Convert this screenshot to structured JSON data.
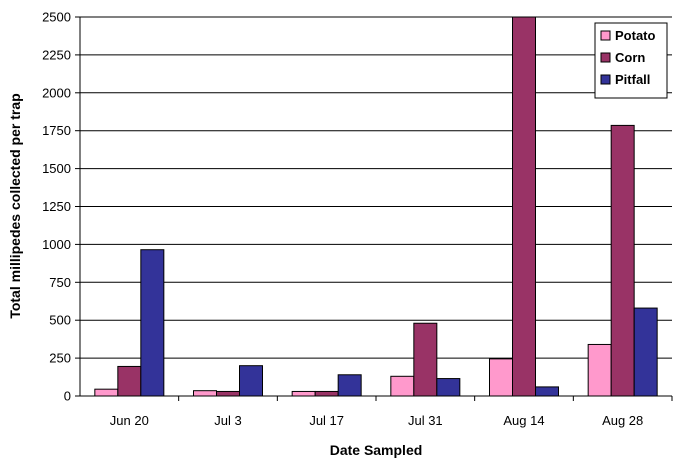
{
  "chart_data": {
    "type": "bar",
    "title": "",
    "xlabel": "Date Sampled",
    "ylabel": "Total millipedes collected per trap",
    "ylim": [
      0,
      2500
    ],
    "yticks": [
      "0",
      "250",
      "500",
      "750",
      "1000",
      "1250",
      "1500",
      "1750",
      "2000",
      "2250",
      "2500"
    ],
    "categories": [
      "Jun 20",
      "Jul 3",
      "Jul 17",
      "Jul 31",
      "Aug 14",
      "Aug 28"
    ],
    "series": [
      {
        "name": "Potato",
        "color": "#FF99CC",
        "values": [
          45,
          35,
          30,
          130,
          245,
          340
        ]
      },
      {
        "name": "Corn",
        "color": "#993366",
        "values": [
          195,
          30,
          30,
          480,
          2520,
          1785
        ]
      },
      {
        "name": "Pitfall",
        "color": "#333399",
        "values": [
          965,
          200,
          140,
          115,
          60,
          580
        ]
      }
    ],
    "grid": true,
    "legend_position": "top-right"
  }
}
